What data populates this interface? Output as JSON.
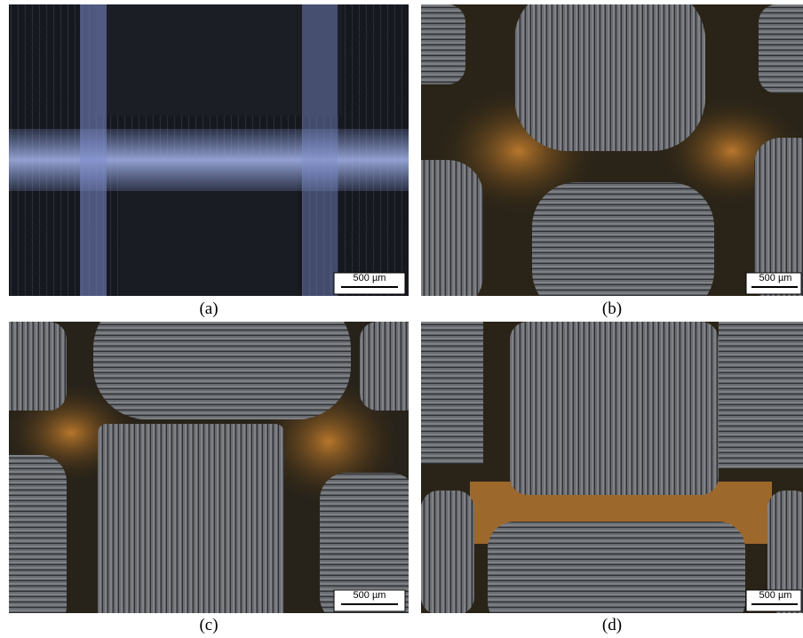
{
  "panels": [
    {
      "label": "(a)",
      "scale_bar": "500 µm"
    },
    {
      "label": "(b)",
      "scale_bar": "500 µm"
    },
    {
      "label": "(c)",
      "scale_bar": "500 µm"
    },
    {
      "label": "(d)",
      "scale_bar": "500 µm"
    }
  ]
}
